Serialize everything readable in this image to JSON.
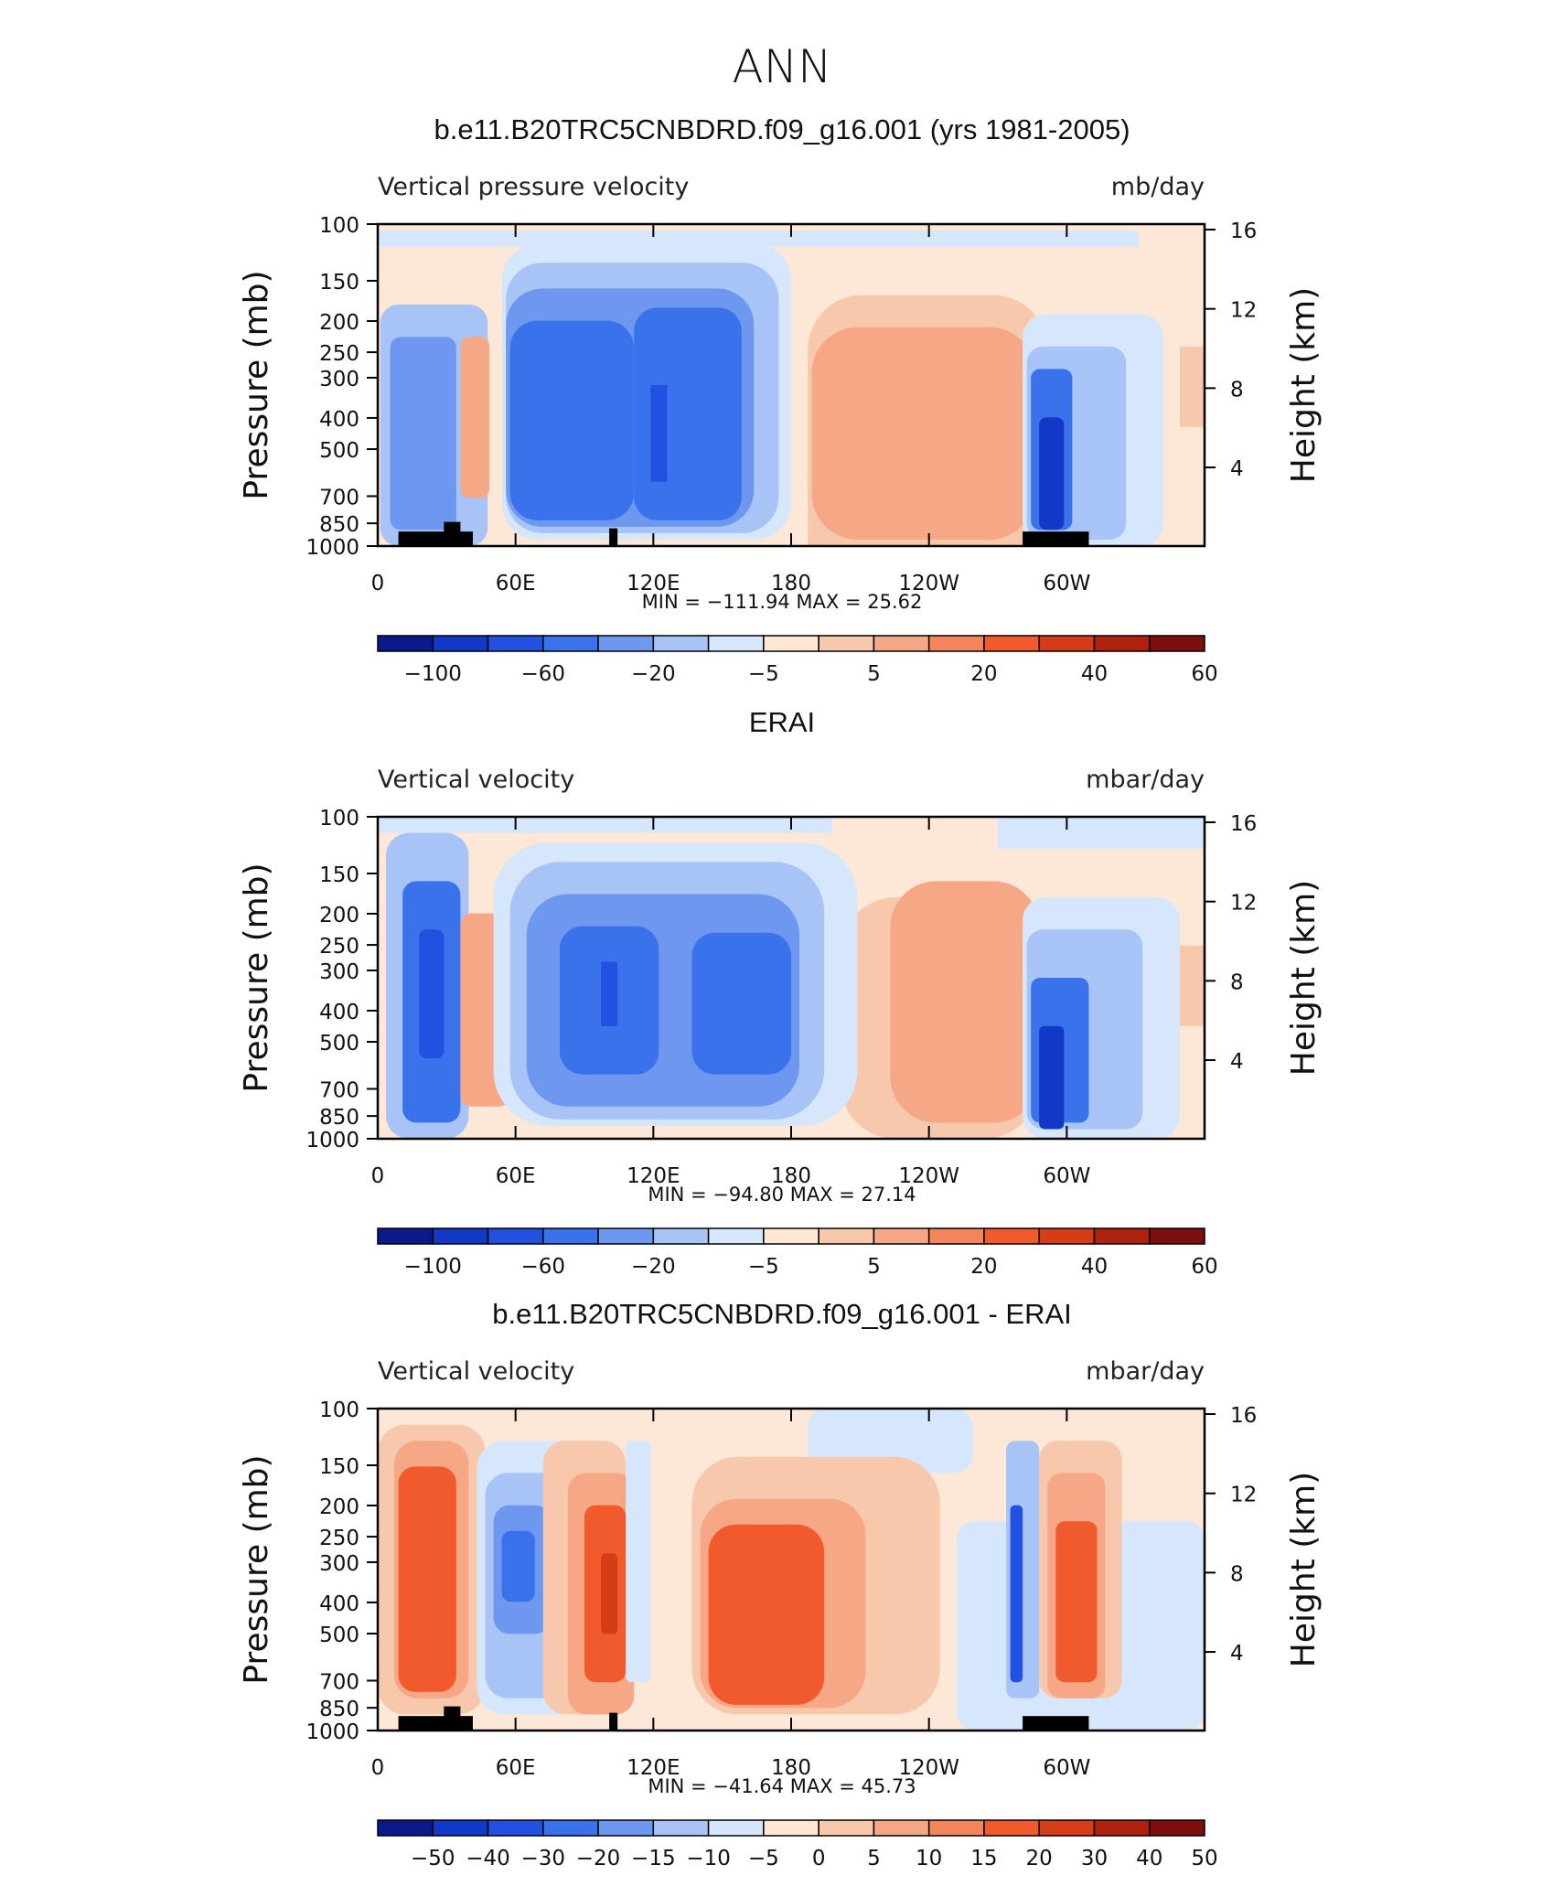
{
  "figure": {
    "main_title": "ANN",
    "ticks": {
      "pressure_labels": [
        "100",
        "150",
        "200",
        "250",
        "300",
        "400",
        "500",
        "700",
        "850",
        "1000"
      ],
      "pressure_values": [
        100,
        150,
        200,
        250,
        300,
        400,
        500,
        700,
        850,
        1000
      ],
      "height_labels": [
        "16",
        "12",
        "8",
        "4"
      ],
      "height_values": [
        16,
        12,
        8,
        4
      ],
      "lon_labels": [
        "0",
        "60E",
        "120E",
        "180",
        "120W",
        "60W"
      ],
      "lon_values": [
        0,
        60,
        120,
        180,
        240,
        300
      ]
    }
  },
  "panels": [
    {
      "title": "b.e11.B20TRC5CNBDRD.f09_g16.001 (yrs 1981-2005)",
      "left_label": "Vertical pressure velocity",
      "right_label": "mb/day",
      "ylabel": "Pressure (mb)",
      "y2label": "Height (km)",
      "stats": "MIN = −111.94   MAX =   25.62",
      "colorbar_labels": [
        "−100",
        "−60",
        "−20",
        "−5",
        "5",
        "20",
        "40",
        "60"
      ],
      "label_positions": [
        1,
        3,
        5,
        7,
        9,
        11,
        13,
        15
      ]
    },
    {
      "title": "ERAI",
      "left_label": "Vertical velocity",
      "right_label": "mbar/day",
      "ylabel": "Pressure (mb)",
      "y2label": "Height (km)",
      "stats": "MIN = −94.80   MAX =   27.14",
      "colorbar_labels": [
        "−100",
        "−60",
        "−20",
        "−5",
        "5",
        "20",
        "40",
        "60"
      ],
      "label_positions": [
        1,
        3,
        5,
        7,
        9,
        11,
        13,
        15
      ]
    },
    {
      "title": "b.e11.B20TRC5CNBDRD.f09_g16.001 - ERAI",
      "left_label": "Vertical velocity",
      "right_label": "mbar/day",
      "ylabel": "Pressure (mb)",
      "y2label": "Height (km)",
      "stats": "MIN = −41.64   MAX =   45.73",
      "colorbar_labels": [
        "−50",
        "−40",
        "−30",
        "−20",
        "−15",
        "−10",
        "−5",
        "0",
        "5",
        "10",
        "15",
        "20",
        "30",
        "40",
        "50"
      ],
      "label_positions": [
        1,
        2,
        3,
        4,
        5,
        6,
        7,
        8,
        9,
        10,
        11,
        12,
        13,
        14,
        15
      ]
    }
  ],
  "colors": {
    "palette": [
      "#0a1a8c",
      "#1238c8",
      "#2250e0",
      "#3a72ec",
      "#6e98ef",
      "#a8c4f6",
      "#d6e6fb",
      "#fde8d8",
      "#f8c8ad",
      "#f6a786",
      "#f4845c",
      "#f05a2c",
      "#d63c16",
      "#b02210",
      "#7c0e0e"
    ]
  },
  "chart_data": [
    {
      "type": "heatmap",
      "title": "b.e11.B20TRC5CNBDRD.f09_g16.001 (yrs 1981-2005)",
      "xlabel": "",
      "ylabel": "Pressure (mb)",
      "y2label": "Height (km)",
      "units": "mb/day",
      "xlim": [
        0,
        360
      ],
      "ylim": [
        1000,
        100
      ],
      "y_scale": "log",
      "grid": false,
      "contour_levels": [
        -100,
        -80,
        -60,
        -40,
        -20,
        -10,
        -5,
        0,
        5,
        10,
        20,
        30,
        40,
        60
      ],
      "min": -111.94,
      "max": 25.62,
      "features": [
        {
          "lon": [
            10,
            40
          ],
          "plev": [
            1000,
            200
          ],
          "value": -40
        },
        {
          "lon": [
            42,
            55
          ],
          "plev": [
            850,
            200
          ],
          "value": 10
        },
        {
          "lon": [
            60,
            110
          ],
          "plev": [
            925,
            170
          ],
          "value": -60
        },
        {
          "lon": [
            110,
            150
          ],
          "plev": [
            925,
            150
          ],
          "value": -50
        },
        {
          "lon": [
            185,
            270
          ],
          "plev": [
            925,
            220
          ],
          "value": 15
        },
        {
          "lon": [
            280,
            305
          ],
          "plev": [
            1000,
            230
          ],
          "value": -40
        }
      ]
    },
    {
      "type": "heatmap",
      "title": "ERAI",
      "xlabel": "",
      "ylabel": "Pressure (mb)",
      "y2label": "Height (km)",
      "units": "mbar/day",
      "xlim": [
        0,
        360
      ],
      "ylim": [
        1000,
        100
      ],
      "y_scale": "log",
      "grid": false,
      "contour_levels": [
        -100,
        -80,
        -60,
        -40,
        -20,
        -10,
        -5,
        0,
        5,
        10,
        20,
        30,
        40,
        60
      ],
      "min": -94.8,
      "max": 27.14,
      "features": [
        {
          "lon": [
            10,
            35
          ],
          "plev": [
            925,
            150
          ],
          "value": -45
        },
        {
          "lon": [
            35,
            55
          ],
          "plev": [
            850,
            250
          ],
          "value": 12
        },
        {
          "lon": [
            65,
            180
          ],
          "plev": [
            925,
            170
          ],
          "value": -50
        },
        {
          "lon": [
            200,
            280
          ],
          "plev": [
            925,
            200
          ],
          "value": 12
        },
        {
          "lon": [
            280,
            325
          ],
          "plev": [
            1000,
            200
          ],
          "value": -40
        }
      ]
    },
    {
      "type": "heatmap",
      "title": "b.e11.B20TRC5CNBDRD.f09_g16.001 - ERAI",
      "xlabel": "",
      "ylabel": "Pressure (mb)",
      "y2label": "Height (km)",
      "units": "mbar/day",
      "xlim": [
        0,
        360
      ],
      "ylim": [
        1000,
        100
      ],
      "y_scale": "log",
      "grid": false,
      "contour_levels": [
        -50,
        -40,
        -30,
        -20,
        -15,
        -10,
        -5,
        0,
        5,
        10,
        15,
        20,
        30,
        40,
        50
      ],
      "min": -41.64,
      "max": 45.73,
      "features": [
        {
          "lon": [
            10,
            35
          ],
          "plev": [
            850,
            150
          ],
          "value": 25
        },
        {
          "lon": [
            45,
            75
          ],
          "plev": [
            850,
            180
          ],
          "value": -25
        },
        {
          "lon": [
            80,
            100
          ],
          "plev": [
            850,
            180
          ],
          "value": 22
        },
        {
          "lon": [
            140,
            200
          ],
          "plev": [
            925,
            230
          ],
          "value": 25
        },
        {
          "lon": [
            290,
            320
          ],
          "plev": [
            850,
            180
          ],
          "value": 18
        }
      ]
    }
  ]
}
